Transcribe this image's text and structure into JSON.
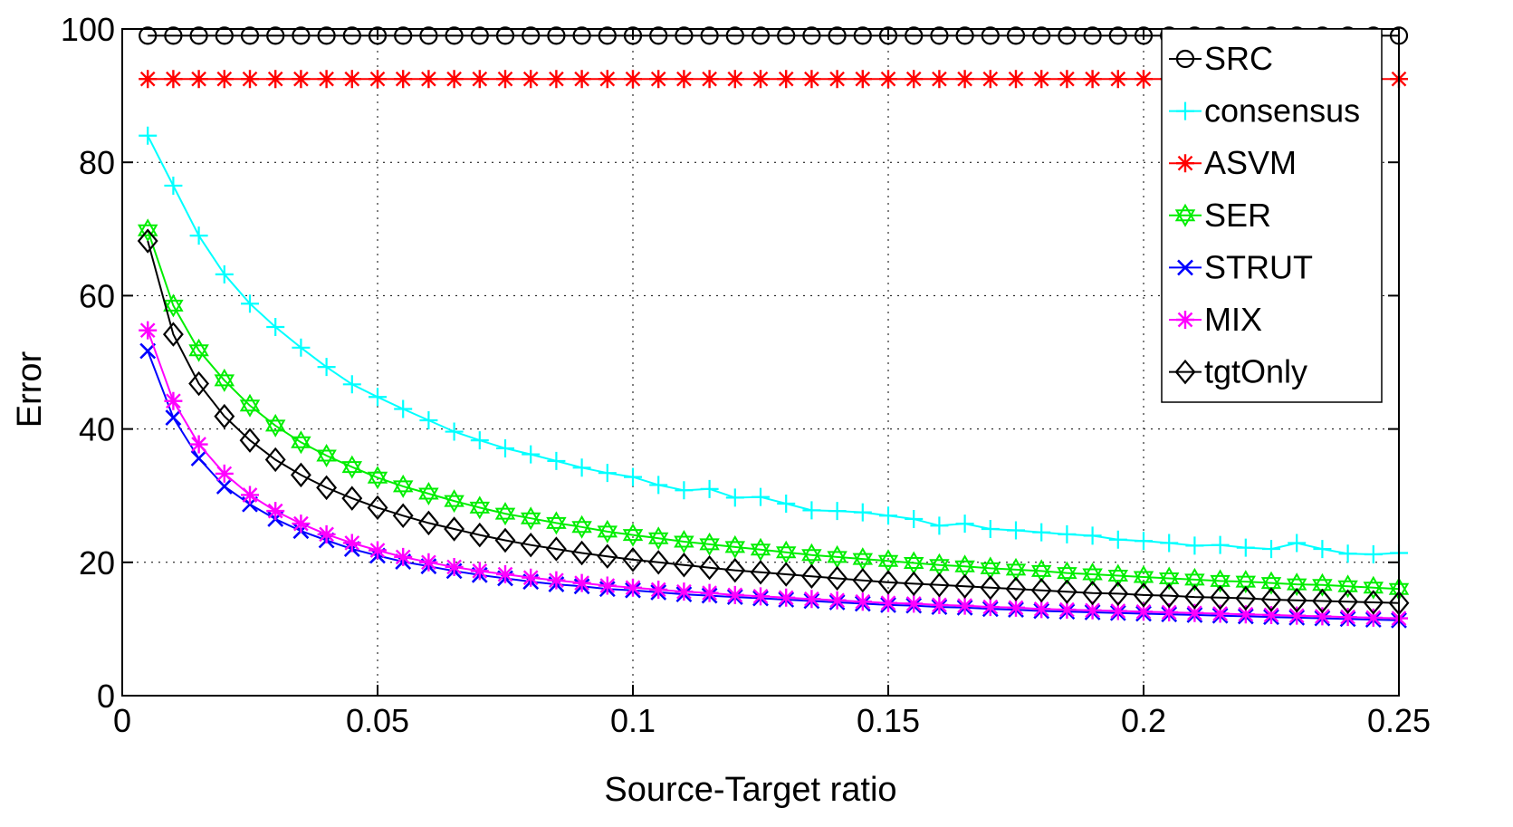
{
  "chart_data": {
    "type": "line",
    "xlabel": "Source-Target ratio",
    "ylabel": "Error",
    "xlim": [
      0,
      0.25
    ],
    "ylim": [
      0,
      100
    ],
    "xticks": [
      0,
      0.05,
      0.1,
      0.15,
      0.2,
      0.25
    ],
    "xtick_labels": [
      "0",
      "0.05",
      "0.1",
      "0.15",
      "0.2",
      "0.25"
    ],
    "yticks": [
      0,
      20,
      40,
      60,
      80,
      100
    ],
    "ytick_labels": [
      "0",
      "20",
      "40",
      "60",
      "80",
      "100"
    ],
    "grid": true,
    "legend_position": "top-right",
    "x": [
      0.005,
      0.01,
      0.015,
      0.02,
      0.025,
      0.03,
      0.035,
      0.04,
      0.045,
      0.05,
      0.055,
      0.06,
      0.065,
      0.07,
      0.075,
      0.08,
      0.085,
      0.09,
      0.095,
      0.1,
      0.105,
      0.11,
      0.115,
      0.12,
      0.125,
      0.13,
      0.135,
      0.14,
      0.145,
      0.15,
      0.155,
      0.16,
      0.165,
      0.17,
      0.175,
      0.18,
      0.185,
      0.19,
      0.195,
      0.2,
      0.205,
      0.21,
      0.215,
      0.22,
      0.225,
      0.23,
      0.235,
      0.24,
      0.245,
      0.25
    ],
    "series": [
      {
        "name": "SRC",
        "color": "#000000",
        "marker": "circle",
        "values": [
          99,
          99,
          99,
          99,
          99,
          99,
          99,
          99,
          99,
          99,
          99,
          99,
          99,
          99,
          99,
          99,
          99,
          99,
          99,
          99,
          99,
          99,
          99,
          99,
          99,
          99,
          99,
          99,
          99,
          99,
          99,
          99,
          99,
          99,
          99,
          99,
          99,
          99,
          99,
          99,
          99,
          99,
          99,
          99,
          99,
          99,
          99,
          99,
          99,
          99
        ]
      },
      {
        "name": "consensus",
        "color": "#00ffff",
        "marker": "plus",
        "values": [
          84,
          76.5,
          69,
          63.2,
          58.8,
          55.3,
          52.2,
          49.3,
          46.7,
          44.8,
          43,
          41.3,
          39.6,
          38.3,
          37.1,
          36.2,
          35.2,
          34.2,
          33.4,
          32.8,
          31.6,
          30.8,
          31,
          29.7,
          29.8,
          28.8,
          27.8,
          27.7,
          27.5,
          27,
          26.5,
          25.5,
          25.8,
          25,
          24.8,
          24.5,
          24.2,
          24,
          23.4,
          23.2,
          22.9,
          22.5,
          22.6,
          22.2,
          22,
          22.9,
          22,
          21.3,
          21.2,
          21.4
        ]
      },
      {
        "name": "ASVM",
        "color": "#ff0000",
        "marker": "asterisk",
        "values": [
          92.5,
          92.5,
          92.5,
          92.5,
          92.5,
          92.5,
          92.5,
          92.5,
          92.5,
          92.5,
          92.5,
          92.5,
          92.5,
          92.5,
          92.5,
          92.5,
          92.5,
          92.5,
          92.5,
          92.5,
          92.5,
          92.5,
          92.5,
          92.5,
          92.5,
          92.5,
          92.5,
          92.5,
          92.5,
          92.5,
          92.5,
          92.5,
          92.5,
          92.5,
          92.5,
          92.5,
          92.5,
          92.5,
          92.5,
          92.5,
          92.5,
          92.5,
          92.5,
          92.5,
          92.5,
          92.5,
          92.5,
          92.5,
          92.5,
          92.5
        ]
      },
      {
        "name": "SER",
        "color": "#00ee00",
        "marker": "hexagram",
        "values": [
          69.8,
          58.5,
          51.8,
          47.3,
          43.5,
          40.5,
          38,
          36,
          34.3,
          32.7,
          31.4,
          30.3,
          29.2,
          28.2,
          27.3,
          26.6,
          25.9,
          25.3,
          24.6,
          24.1,
          23.6,
          23.1,
          22.7,
          22.3,
          21.9,
          21.5,
          21.1,
          20.8,
          20.5,
          20.2,
          19.9,
          19.6,
          19.4,
          19.1,
          18.9,
          18.7,
          18.4,
          18.2,
          18,
          17.8,
          17.6,
          17.4,
          17.2,
          17.1,
          16.9,
          16.7,
          16.6,
          16.4,
          16.2,
          16
        ]
      },
      {
        "name": "STRUT",
        "color": "#0000ff",
        "marker": "cross",
        "values": [
          51.7,
          41.7,
          35.6,
          31.4,
          28.7,
          26.5,
          24.7,
          23.3,
          22,
          21,
          20.1,
          19.4,
          18.7,
          18.1,
          17.6,
          17.1,
          16.7,
          16.4,
          16,
          15.8,
          15.5,
          15.2,
          15,
          14.8,
          14.6,
          14.4,
          14.2,
          14,
          13.8,
          13.6,
          13.5,
          13.3,
          13.2,
          13,
          12.9,
          12.7,
          12.6,
          12.5,
          12.4,
          12.3,
          12.2,
          12.1,
          12,
          11.9,
          11.8,
          11.7,
          11.6,
          11.5,
          11.4,
          11.3
        ]
      },
      {
        "name": "MIX",
        "color": "#ff00ff",
        "marker": "asterisk",
        "values": [
          54.8,
          44.2,
          37.7,
          33.3,
          30.1,
          27.7,
          25.8,
          24.2,
          22.9,
          21.8,
          20.8,
          20,
          19.3,
          18.7,
          18.2,
          17.7,
          17.3,
          16.9,
          16.5,
          16.2,
          15.9,
          15.6,
          15.4,
          15.1,
          14.9,
          14.7,
          14.5,
          14.3,
          14.1,
          13.9,
          13.8,
          13.6,
          13.5,
          13.3,
          13.2,
          13,
          12.9,
          12.8,
          12.7,
          12.6,
          12.5,
          12.4,
          12.3,
          12.2,
          12.1,
          12,
          11.9,
          11.8,
          11.7,
          11.6
        ]
      },
      {
        "name": "tgtOnly",
        "color": "#000000",
        "marker": "diamond",
        "values": [
          68.2,
          54.2,
          46.8,
          41.9,
          38.3,
          35.4,
          33.1,
          31.2,
          29.6,
          28.2,
          27,
          25.9,
          25,
          24.1,
          23.3,
          22.6,
          22,
          21.4,
          20.9,
          20.4,
          20,
          19.6,
          19.2,
          18.8,
          18.5,
          18.2,
          17.9,
          17.6,
          17.3,
          17,
          16.8,
          16.6,
          16.4,
          16.2,
          16,
          15.8,
          15.6,
          15.4,
          15.3,
          15.1,
          15,
          14.8,
          14.7,
          14.6,
          14.4,
          14.3,
          14.2,
          14.1,
          14,
          13.9
        ]
      }
    ]
  }
}
